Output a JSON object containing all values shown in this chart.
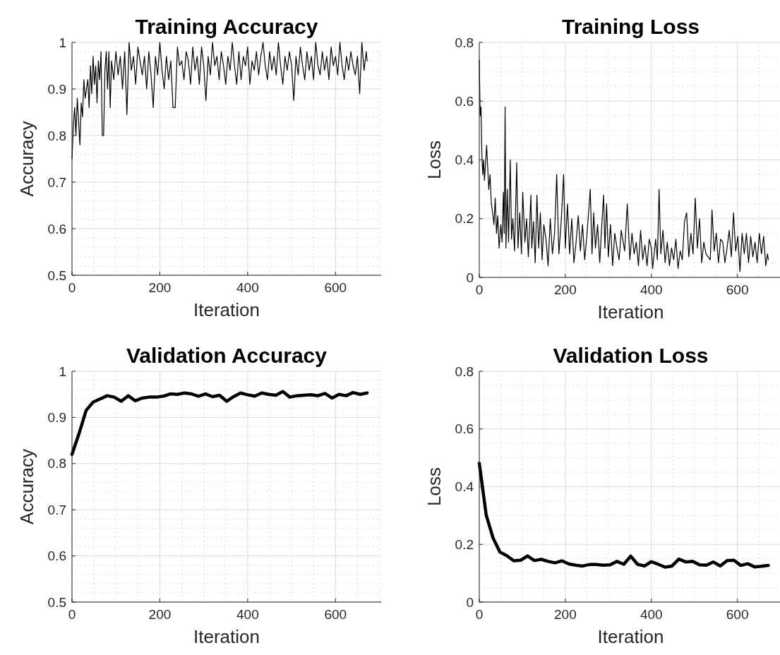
{
  "chart_data": [
    {
      "type": "line",
      "title": "Training Accuracy",
      "xlabel": "Iteration",
      "ylabel": "Accuracy",
      "xlim": [
        0,
        704
      ],
      "xticks": [
        0,
        200,
        400,
        600
      ],
      "ylim": [
        0.5,
        1
      ],
      "yticks": [
        0.5,
        0.6,
        0.7,
        0.8,
        0.9,
        1
      ],
      "grid": true,
      "marker": "none",
      "line_style": "solid",
      "series": [
        {
          "color": "#000000",
          "x": [
            0,
            3,
            6,
            9,
            12,
            15,
            18,
            21,
            24,
            27,
            30,
            33,
            36,
            39,
            42,
            45,
            48,
            51,
            54,
            57,
            60,
            63,
            66,
            69,
            72,
            75,
            78,
            81,
            84,
            87,
            90,
            95,
            100,
            105,
            110,
            115,
            120,
            125,
            130,
            135,
            140,
            145,
            150,
            160,
            165,
            170,
            175,
            180,
            185,
            190,
            195,
            200,
            205,
            210,
            215,
            220,
            225,
            230,
            235,
            240,
            245,
            250,
            255,
            260,
            265,
            270,
            275,
            280,
            285,
            290,
            295,
            300,
            305,
            310,
            315,
            320,
            325,
            330,
            335,
            340,
            345,
            350,
            355,
            360,
            365,
            370,
            375,
            380,
            385,
            390,
            395,
            400,
            405,
            410,
            415,
            420,
            425,
            430,
            435,
            440,
            445,
            450,
            455,
            460,
            465,
            470,
            475,
            480,
            485,
            490,
            495,
            500,
            505,
            510,
            515,
            520,
            525,
            530,
            535,
            540,
            545,
            550,
            555,
            560,
            565,
            570,
            575,
            580,
            585,
            590,
            595,
            600,
            605,
            610,
            615,
            620,
            625,
            630,
            635,
            640,
            645,
            650,
            655,
            660,
            665,
            670,
            672
          ],
          "values": [
            0.75,
            0.82,
            0.86,
            0.8,
            0.88,
            0.83,
            0.78,
            0.87,
            0.84,
            0.92,
            0.88,
            0.9,
            0.92,
            0.86,
            0.95,
            0.89,
            0.97,
            0.91,
            0.95,
            0.87,
            0.96,
            0.92,
            0.98,
            0.8,
            0.8,
            0.94,
            0.98,
            0.9,
            0.98,
            0.86,
            0.96,
            0.92,
            0.98,
            0.93,
            0.97,
            0.9,
            0.98,
            0.845,
            1,
            0.94,
            0.97,
            0.91,
            0.99,
            0.93,
            0.97,
            0.9,
            0.98,
            0.93,
            0.86,
            0.97,
            0.93,
            1,
            0.94,
            0.9,
            0.97,
            0.92,
            0.96,
            0.86,
            0.86,
            0.99,
            0.95,
            0.96,
            0.92,
            0.98,
            0.96,
            0.91,
            0.99,
            0.94,
            0.97,
            0.91,
            0.99,
            0.95,
            0.875,
            0.97,
            0.93,
            1,
            0.95,
            0.97,
            0.92,
            0.98,
            0.95,
            0.91,
            0.97,
            0.94,
            1,
            0.95,
            0.91,
            0.98,
            0.92,
            0.97,
            0.95,
            0.99,
            0.91,
            0.96,
            0.94,
            0.98,
            0.93,
            0.97,
            1,
            0.95,
            0.92,
            0.98,
            0.94,
            0.97,
            0.93,
            1,
            0.95,
            0.91,
            0.97,
            0.94,
            0.98,
            0.95,
            0.875,
            0.97,
            0.93,
            0.99,
            0.95,
            0.92,
            0.98,
            0.94,
            0.97,
            0.92,
            1,
            0.95,
            0.93,
            0.98,
            0.94,
            0.97,
            0.92,
            0.99,
            0.95,
            0.97,
            0.93,
            1,
            0.95,
            0.92,
            0.97,
            0.94,
            0.98,
            0.95,
            0.93,
            0.97,
            0.89,
            1,
            0.94,
            0.98,
            0.96
          ]
        }
      ]
    },
    {
      "type": "line",
      "title": "Training Loss",
      "xlabel": "Iteration",
      "ylabel": "Loss",
      "xlim": [
        0,
        704
      ],
      "xticks": [
        0,
        200,
        400,
        600
      ],
      "ylim": [
        0,
        0.8
      ],
      "yticks": [
        0,
        0.2,
        0.4,
        0.6,
        0.8
      ],
      "grid": true,
      "marker": "none",
      "line_style": "solid",
      "series": [
        {
          "color": "#000000",
          "x": [
            0,
            2,
            4,
            6,
            8,
            10,
            12,
            15,
            17,
            20,
            22,
            25,
            28,
            31,
            34,
            37,
            40,
            43,
            46,
            50,
            53,
            56,
            58,
            60,
            62,
            65,
            68,
            72,
            75,
            78,
            82,
            87,
            90,
            94,
            98,
            101,
            106,
            110,
            114,
            120,
            122,
            126,
            130,
            134,
            138,
            142,
            146,
            150,
            155,
            160,
            165,
            170,
            175,
            180,
            185,
            190,
            196,
            200,
            205,
            210,
            215,
            220,
            225,
            230,
            235,
            240,
            245,
            250,
            258,
            262,
            266,
            270,
            275,
            280,
            284,
            289,
            292,
            296,
            300,
            305,
            310,
            315,
            320,
            325,
            330,
            338,
            344,
            350,
            355,
            360,
            365,
            370,
            375,
            380,
            385,
            390,
            395,
            400,
            403,
            410,
            414,
            418,
            422,
            427,
            432,
            437,
            442,
            447,
            452,
            457,
            462,
            467,
            472,
            477,
            482,
            487,
            492,
            497,
            502,
            507,
            512,
            517,
            522,
            527,
            537,
            541,
            546,
            551,
            556,
            561,
            566,
            571,
            576,
            581,
            586,
            591,
            596,
            601,
            606,
            611,
            616,
            621,
            626,
            631,
            636,
            641,
            646,
            651,
            656,
            661,
            666,
            670,
            672
          ],
          "values": [
            0.74,
            0.55,
            0.58,
            0.42,
            0.35,
            0.4,
            0.33,
            0.4,
            0.45,
            0.36,
            0.3,
            0.35,
            0.25,
            0.22,
            0.18,
            0.27,
            0.15,
            0.21,
            0.1,
            0.18,
            0.12,
            0.29,
            0.15,
            0.58,
            0.1,
            0.3,
            0.12,
            0.4,
            0.13,
            0.2,
            0.09,
            0.39,
            0.1,
            0.22,
            0.08,
            0.29,
            0.12,
            0.2,
            0.07,
            0.28,
            0.1,
            0.19,
            0.05,
            0.28,
            0.1,
            0.22,
            0.06,
            0.18,
            0.13,
            0.04,
            0.2,
            0.08,
            0.15,
            0.35,
            0.08,
            0.18,
            0.35,
            0.1,
            0.25,
            0.08,
            0.2,
            0.05,
            0.12,
            0.21,
            0.09,
            0.18,
            0.06,
            0.14,
            0.3,
            0.08,
            0.22,
            0.1,
            0.18,
            0.05,
            0.16,
            0.28,
            0.1,
            0.25,
            0.07,
            0.18,
            0.04,
            0.15,
            0.1,
            0.06,
            0.16,
            0.09,
            0.25,
            0.06,
            0.15,
            0.08,
            0.12,
            0.04,
            0.16,
            0.06,
            0.11,
            0.04,
            0.13,
            0.1,
            0.03,
            0.13,
            0.06,
            0.3,
            0.08,
            0.16,
            0.05,
            0.12,
            0.04,
            0.1,
            0.06,
            0.13,
            0.03,
            0.09,
            0.06,
            0.19,
            0.22,
            0.07,
            0.15,
            0.08,
            0.27,
            0.1,
            0.2,
            0.05,
            0.12,
            0.08,
            0.06,
            0.23,
            0.09,
            0.15,
            0.05,
            0.13,
            0.12,
            0.05,
            0.1,
            0.16,
            0.07,
            0.22,
            0.09,
            0.14,
            0.02,
            0.15,
            0.08,
            0.15,
            0.05,
            0.14,
            0.07,
            0.12,
            0.05,
            0.15,
            0.08,
            0.14,
            0.04,
            0.08,
            0.06
          ]
        }
      ]
    },
    {
      "type": "line",
      "title": "Validation Accuracy",
      "xlabel": "Iteration",
      "ylabel": "Accuracy",
      "xlim": [
        0,
        704
      ],
      "xticks": [
        0,
        200,
        400,
        600
      ],
      "ylim": [
        0.5,
        1
      ],
      "yticks": [
        0.5,
        0.6,
        0.7,
        0.8,
        0.9,
        1
      ],
      "grid": true,
      "marker": "none",
      "line_style": "solid",
      "series": [
        {
          "color": "#000000",
          "x": [
            0,
            16,
            32,
            48,
            64,
            80,
            96,
            112,
            128,
            144,
            160,
            176,
            192,
            208,
            224,
            240,
            256,
            272,
            288,
            304,
            320,
            336,
            352,
            368,
            384,
            400,
            416,
            432,
            448,
            464,
            480,
            496,
            512,
            528,
            544,
            560,
            576,
            592,
            608,
            624,
            640,
            656,
            672
          ],
          "values": [
            0.82,
            0.865,
            0.915,
            0.933,
            0.94,
            0.947,
            0.944,
            0.935,
            0.947,
            0.936,
            0.942,
            0.944,
            0.944,
            0.946,
            0.951,
            0.95,
            0.953,
            0.951,
            0.946,
            0.951,
            0.945,
            0.948,
            0.935,
            0.945,
            0.953,
            0.949,
            0.946,
            0.953,
            0.95,
            0.948,
            0.956,
            0.944,
            0.947,
            0.948,
            0.949,
            0.947,
            0.952,
            0.942,
            0.95,
            0.947,
            0.954,
            0.95,
            0.953
          ]
        }
      ]
    },
    {
      "type": "line",
      "title": "Validation Loss",
      "xlabel": "Iteration",
      "ylabel": "Loss",
      "xlim": [
        0,
        704
      ],
      "xticks": [
        0,
        200,
        400,
        600
      ],
      "ylim": [
        0,
        0.8
      ],
      "yticks": [
        0,
        0.2,
        0.4,
        0.6,
        0.8
      ],
      "grid": true,
      "marker": "none",
      "line_style": "solid",
      "series": [
        {
          "color": "#000000",
          "x": [
            0,
            16,
            32,
            48,
            64,
            80,
            96,
            112,
            128,
            144,
            160,
            176,
            192,
            208,
            224,
            240,
            256,
            272,
            288,
            304,
            320,
            336,
            352,
            368,
            384,
            400,
            416,
            432,
            448,
            464,
            480,
            496,
            512,
            528,
            544,
            560,
            576,
            592,
            608,
            624,
            640,
            656,
            672
          ],
          "values": [
            0.481,
            0.302,
            0.222,
            0.173,
            0.161,
            0.143,
            0.145,
            0.16,
            0.144,
            0.148,
            0.141,
            0.136,
            0.143,
            0.132,
            0.128,
            0.125,
            0.13,
            0.13,
            0.128,
            0.129,
            0.141,
            0.131,
            0.159,
            0.131,
            0.125,
            0.14,
            0.131,
            0.121,
            0.125,
            0.149,
            0.139,
            0.141,
            0.129,
            0.128,
            0.139,
            0.125,
            0.144,
            0.145,
            0.127,
            0.133,
            0.122,
            0.124,
            0.127
          ]
        }
      ]
    }
  ]
}
